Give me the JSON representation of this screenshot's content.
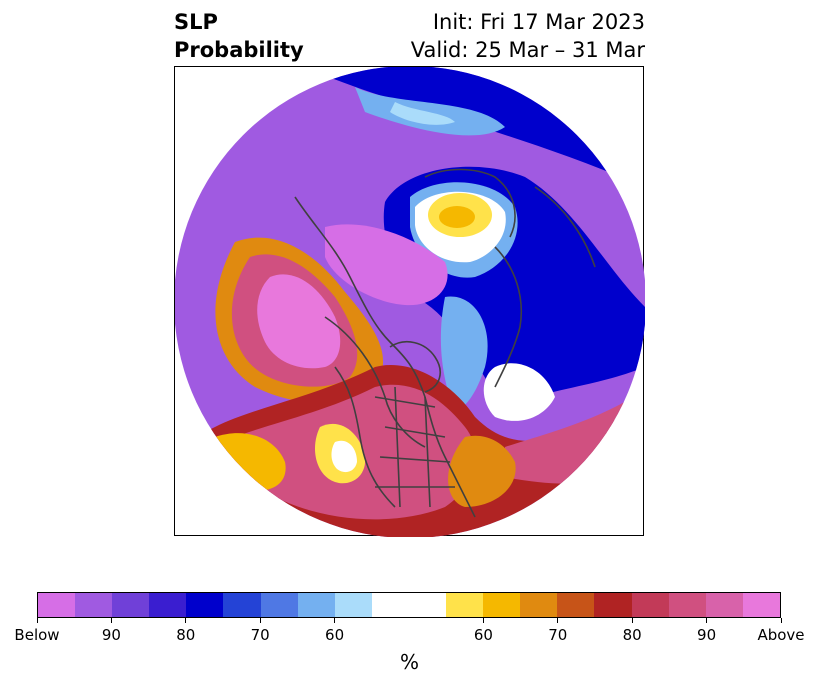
{
  "title": {
    "left_line1": "SLP",
    "left_line2": "Probability",
    "right_line1": "Init: Fri 17 Mar 2023",
    "right_line2": "Valid: 25 Mar – 31 Mar"
  },
  "colorbar": {
    "unit": "%",
    "colors": [
      "#d66ee6",
      "#a05ae1",
      "#7040d8",
      "#3a1ed0",
      "#0000cc",
      "#2443d6",
      "#4f78e4",
      "#74b0f0",
      "#aadcfa",
      "#ffffff",
      "#ffffff",
      "#ffe24a",
      "#f5b800",
      "#e08a10",
      "#c75418",
      "#b02323",
      "#c23a58",
      "#d05080",
      "#d862aa",
      "#e878dc"
    ],
    "ticks": [
      "Below",
      "90",
      "80",
      "70",
      "60",
      "60",
      "70",
      "80",
      "90",
      "Above"
    ]
  },
  "map": {
    "colors": {
      "below_strong": "#a05ae1",
      "below_mid": "#7040d8",
      "below_deep": "#0000cc",
      "below_light": "#74b0f0",
      "below_pale": "#aadcfa",
      "above_pink": "#e878dc",
      "above_rose": "#d05080",
      "above_red": "#b02323",
      "above_orange": "#e08a10",
      "above_yellow": "#f5b800",
      "above_pale": "#ffe24a",
      "boundary": "#404040"
    }
  }
}
